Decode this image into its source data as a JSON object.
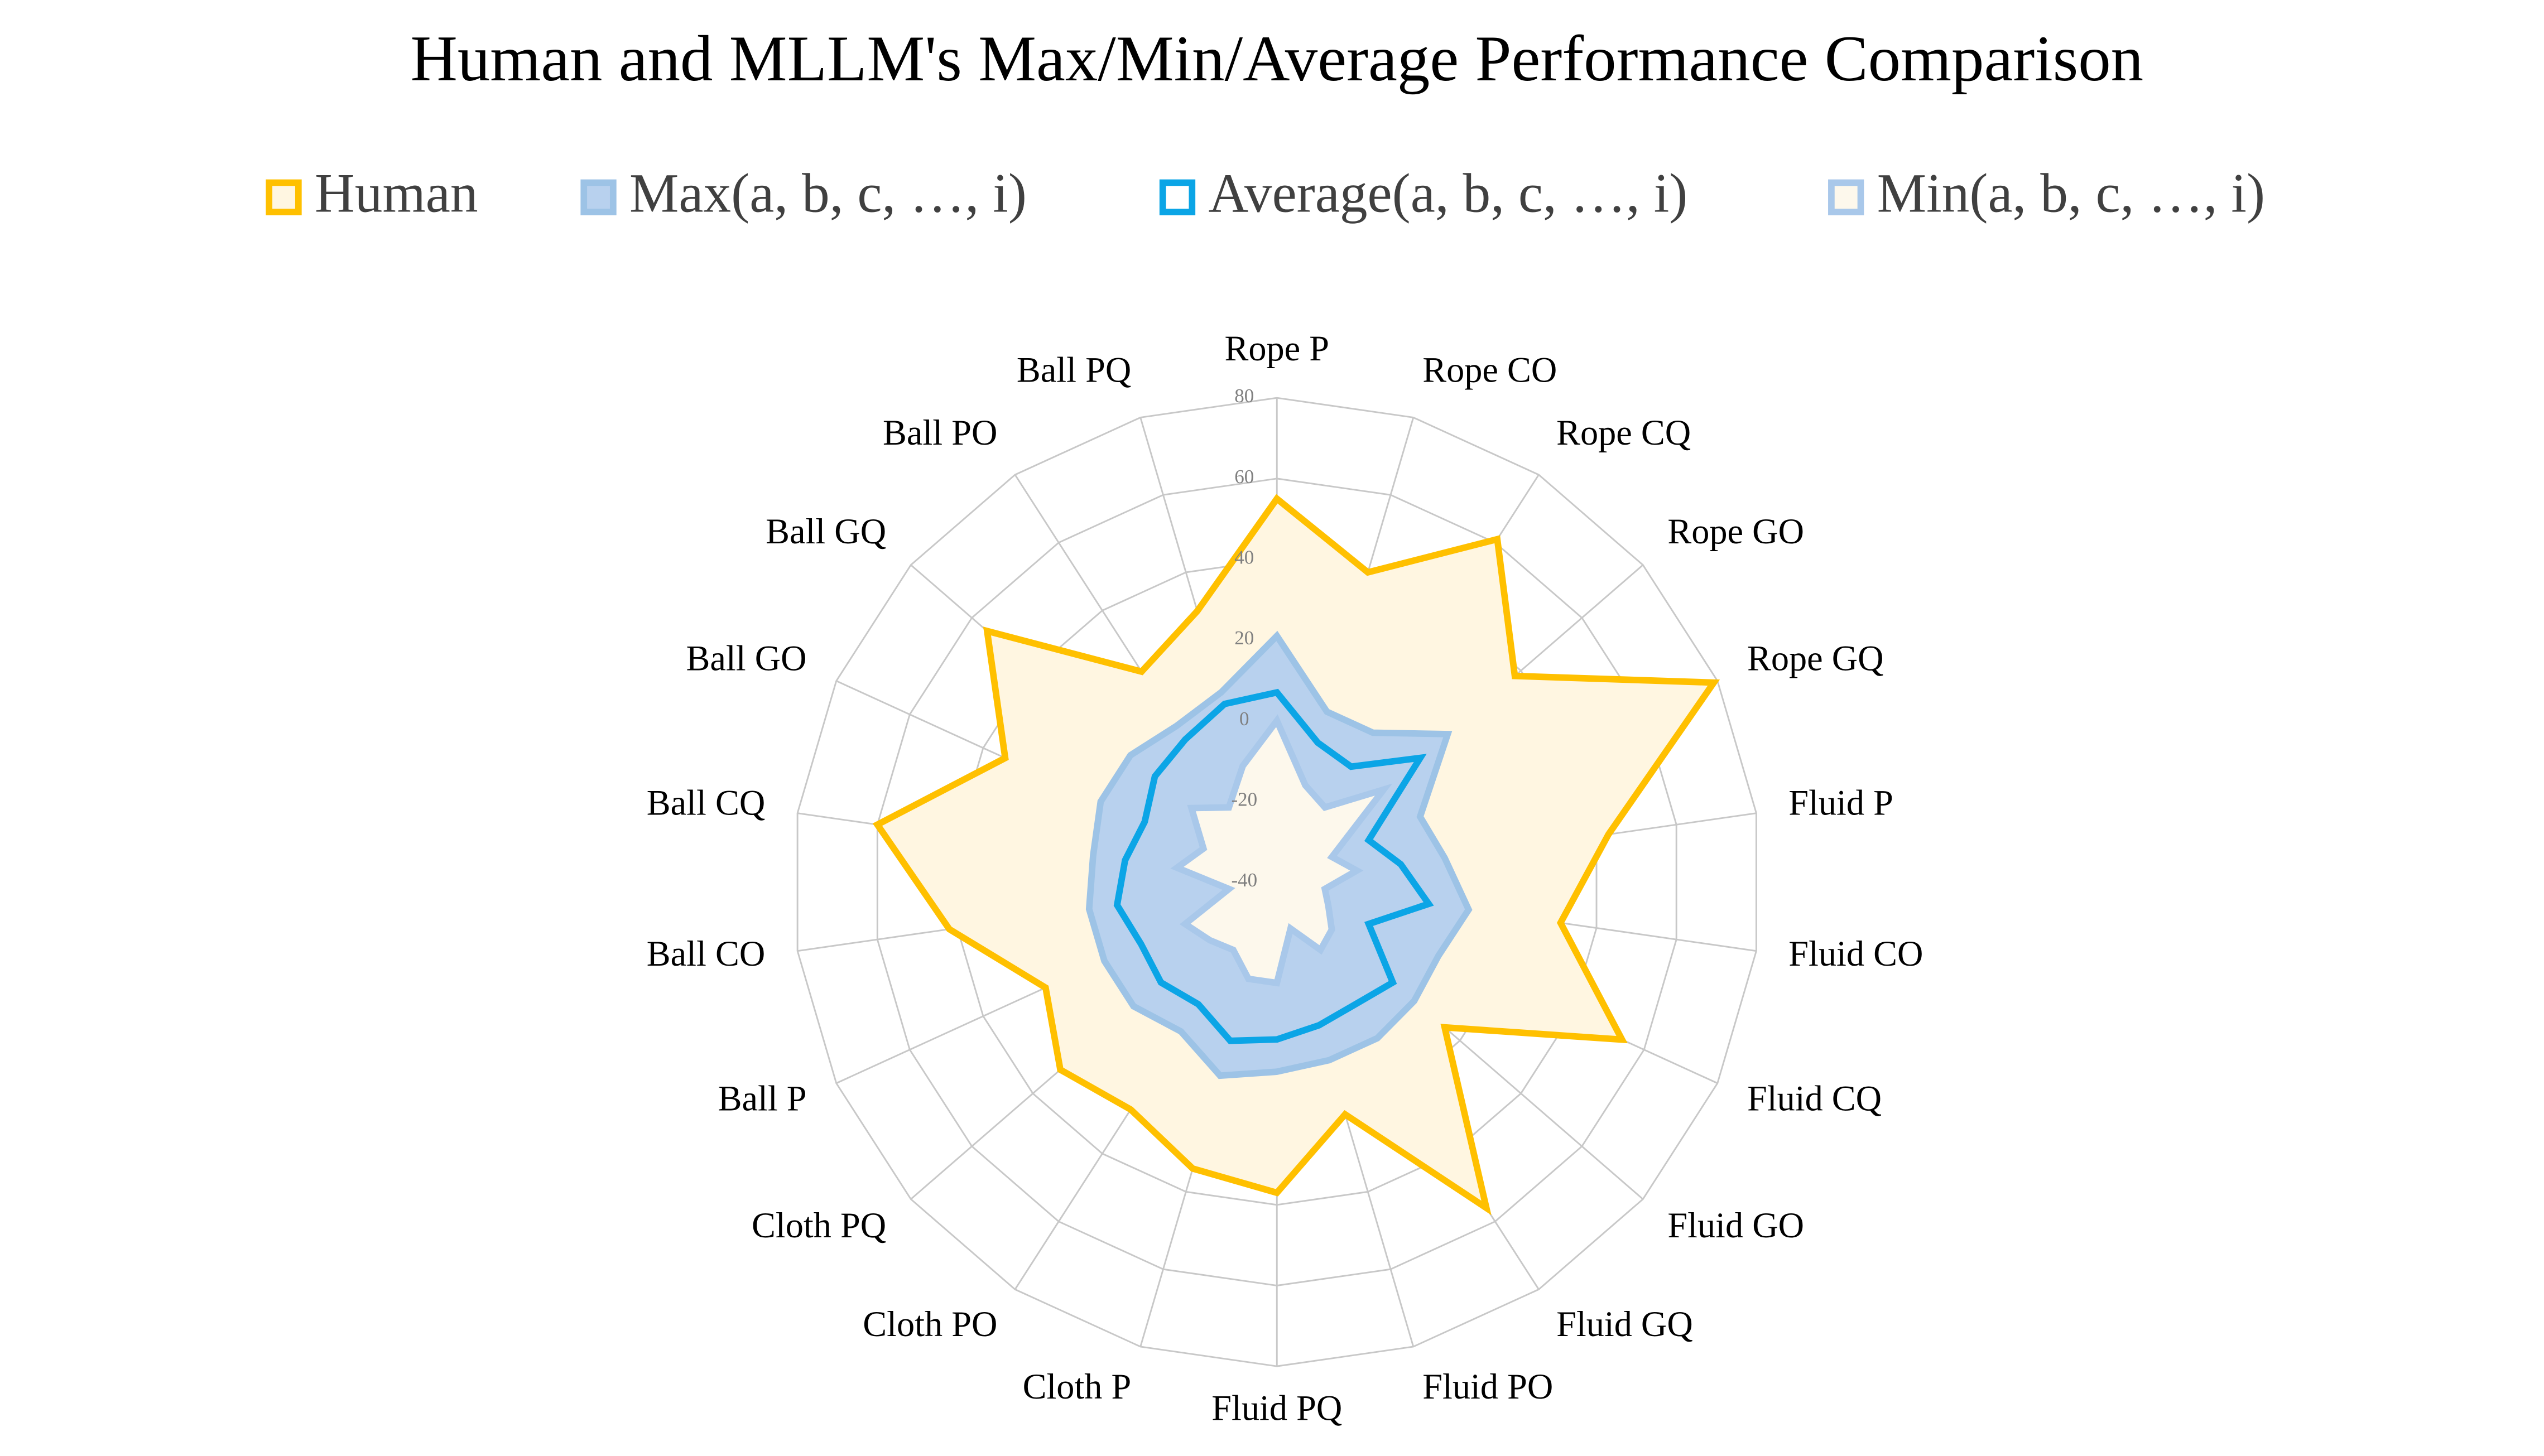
{
  "chart_data": {
    "type": "radar",
    "title": "Human and MLLM's Max/Min/Average Performance Comparison",
    "categories": [
      "Rope P",
      "Rope CO",
      "Rope CQ",
      "Rope GO",
      "Rope GQ",
      "Fluid P",
      "Fluid CO",
      "Fluid CQ",
      "Fluid GO",
      "Fluid GQ",
      "Fluid PO",
      "Fluid PQ",
      "Cloth P",
      "Cloth PO",
      "Cloth PQ",
      "Ball P",
      "Ball CO",
      "Ball CQ",
      "Ball GO",
      "Ball GQ",
      "Ball PO",
      "Ball PQ"
    ],
    "series": [
      {
        "name": "Human",
        "color": "#ffc000",
        "fill": "#fff6e1",
        "values": [
          55,
          40,
          61,
          38,
          79,
          43,
          31,
          54,
          15,
          56,
          20,
          37,
          34,
          27,
          31,
          23,
          42,
          60,
          34,
          55,
          22,
          30
        ]
      },
      {
        "name": "Max(a, b, c, …, i)",
        "color": "#9dc3e6",
        "fill": "#b8d1ee",
        "values": [
          21,
          4,
          4,
          16,
          -1,
          2,
          8,
          4,
          5,
          6,
          6,
          7,
          10,
          4,
          7,
          7,
          7,
          6,
          8,
          8,
          6,
          9
        ]
      },
      {
        "name": "Average(a, b, c, …, i)",
        "color": "#0ba5e6",
        "fill": "none",
        "values": [
          7,
          -4,
          -6,
          7,
          -15,
          -9,
          -2,
          -15,
          -2,
          -4,
          -3,
          -1,
          1,
          -4,
          -2,
          -3,
          0,
          -2,
          -4,
          0,
          2,
          6
        ]
      },
      {
        "name": "Min(a, b, c, …, i)",
        "color": "#a9c8ea",
        "fill": "#fdf8ec",
        "values": [
          0,
          -15,
          -18,
          -5,
          -25,
          -20,
          -28,
          -26,
          -22,
          -20,
          -28,
          -15,
          -15,
          -20,
          -18,
          -15,
          -28,
          -15,
          -20,
          -12,
          -18,
          -10
        ]
      }
    ],
    "ylim": [
      -40,
      80
    ],
    "yticks": [
      -40,
      -20,
      0,
      20,
      40,
      60,
      80
    ],
    "grid": true
  }
}
